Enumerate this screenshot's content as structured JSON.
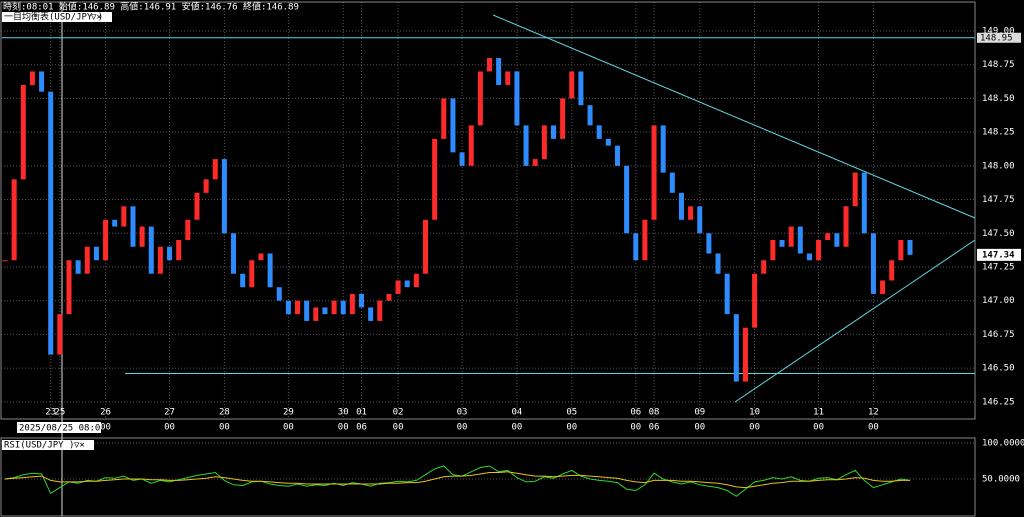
{
  "chart_data": [
    {
      "type": "candlestick",
      "info": "時刻:08:01 始値:146.89 高値:146.91 安値:146.76 終値:146.89",
      "title": "一目均衡表(USD/JPY )",
      "cursor_label": "2025/08/25 08:00",
      "up_color": "#ff2a2a",
      "down_color": "#2f8cff",
      "values": [
        147.3,
        147.9,
        148.6,
        148.7,
        148.55,
        146.6,
        146.9,
        147.3,
        147.2,
        147.4,
        147.3,
        147.6,
        147.55,
        147.7,
        147.4,
        147.55,
        147.2,
        147.4,
        147.3,
        147.45,
        147.6,
        147.8,
        147.9,
        148.05,
        147.5,
        147.2,
        147.1,
        147.3,
        147.35,
        147.1,
        147.0,
        146.9,
        147.0,
        146.85,
        146.95,
        146.9,
        147.0,
        146.9,
        147.05,
        146.95,
        146.85,
        147.0,
        147.05,
        147.15,
        147.1,
        147.2,
        147.6,
        148.2,
        148.5,
        148.1,
        148.0,
        148.3,
        148.7,
        148.8,
        148.6,
        148.7,
        148.3,
        148.0,
        148.05,
        148.3,
        148.2,
        148.5,
        148.7,
        148.45,
        148.3,
        148.2,
        148.15,
        148.0,
        147.5,
        147.3,
        147.6,
        148.3,
        147.95,
        147.8,
        147.6,
        147.7,
        147.5,
        147.35,
        147.2,
        146.9,
        146.4,
        146.8,
        147.2,
        147.3,
        147.45,
        147.4,
        147.55,
        147.35,
        147.3,
        147.45,
        147.5,
        147.4,
        147.7,
        147.95,
        147.5,
        147.05,
        147.15,
        147.3,
        147.45,
        147.34
      ],
      "ylim": [
        146.13,
        149.23
      ],
      "yticks": [
        146.25,
        {
          "value": 146.5,
          "label": "146.50"
        },
        146.75,
        {
          "value": 147.0,
          "label": "147.00"
        },
        147.25,
        {
          "value": 147.5,
          "label": "147.50"
        },
        147.75,
        {
          "value": 148.0,
          "label": "148.00"
        },
        148.25,
        {
          "value": 148.5,
          "label": "148.50"
        },
        148.75,
        {
          "value": 149.0,
          "label": "149.00"
        }
      ],
      "hlines": [
        148.95,
        146.46
      ],
      "xticks": [
        {
          "value": 5,
          "label": "23"
        },
        {
          "value": 6,
          "label": "25"
        },
        {
          "value": 11,
          "label": "26",
          "hour": "00"
        },
        {
          "value": 18,
          "label": "27",
          "hour": "00"
        },
        {
          "value": 24,
          "label": "28",
          "hour": "00"
        },
        {
          "value": 31,
          "label": "29",
          "hour": "00"
        },
        {
          "value": 37,
          "label": "30",
          "hour": "00"
        },
        {
          "value": 39,
          "label": "01",
          "hour": "06"
        },
        {
          "value": 43,
          "label": "02",
          "hour": "00"
        },
        {
          "value": 50,
          "label": "03",
          "hour": "00"
        },
        {
          "value": 56,
          "label": "04",
          "hour": "00"
        },
        {
          "value": 62,
          "label": "05",
          "hour": "00"
        },
        {
          "value": 69,
          "label": "06",
          "hour": "00"
        },
        {
          "value": 71,
          "label": "08",
          "hour": "06"
        },
        {
          "value": 76,
          "label": "09",
          "hour": "00"
        },
        {
          "value": 82,
          "label": "10",
          "hour": "00"
        },
        {
          "value": 89,
          "label": "11",
          "hour": "00"
        },
        {
          "value": 95,
          "label": "12",
          "hour": "00"
        }
      ]
    },
    {
      "type": "line",
      "title": "RSI(USD/JPY )",
      "series": [
        {
          "color": "#2ed82e",
          "values": [
            50,
            52,
            56,
            58,
            57,
            30,
            38,
            46,
            44,
            48,
            47,
            52,
            51,
            54,
            48,
            50,
            44,
            48,
            46,
            49,
            52,
            55,
            57,
            59,
            48,
            42,
            41,
            46,
            47,
            43,
            41,
            40,
            43,
            40,
            42,
            41,
            44,
            41,
            45,
            43,
            40,
            44,
            45,
            47,
            46,
            48,
            56,
            64,
            68,
            56,
            54,
            60,
            66,
            68,
            60,
            62,
            52,
            46,
            47,
            53,
            51,
            57,
            62,
            54,
            50,
            48,
            47,
            45,
            36,
            34,
            42,
            58,
            50,
            46,
            43,
            46,
            42,
            40,
            38,
            34,
            26,
            36,
            46,
            48,
            52,
            50,
            53,
            48,
            47,
            51,
            52,
            49,
            56,
            62,
            48,
            38,
            42,
            46,
            50,
            48
          ]
        },
        {
          "color": "#e8c21a",
          "values": [
            50,
            51,
            52,
            53,
            54,
            48,
            46,
            46,
            46,
            47,
            47,
            48,
            49,
            50,
            50,
            50,
            49,
            49,
            48,
            48,
            49,
            50,
            51,
            53,
            52,
            50,
            48,
            47,
            47,
            46,
            45,
            44,
            44,
            43,
            43,
            43,
            43,
            43,
            43,
            43,
            43,
            43,
            44,
            44,
            45,
            45,
            47,
            50,
            53,
            54,
            54,
            55,
            57,
            59,
            59,
            60,
            58,
            56,
            54,
            54,
            53,
            54,
            55,
            55,
            54,
            53,
            52,
            51,
            48,
            46,
            45,
            48,
            48,
            48,
            47,
            47,
            46,
            45,
            44,
            42,
            39,
            38,
            40,
            42,
            44,
            45,
            47,
            47,
            47,
            48,
            49,
            49,
            50,
            52,
            51,
            48,
            47,
            47,
            48,
            48
          ]
        }
      ],
      "ylim": [
        0,
        100
      ],
      "yticks": [
        {
          "value": 100,
          "label": "100.0000"
        },
        {
          "value": 50,
          "label": "50.0000"
        }
      ]
    }
  ]
}
